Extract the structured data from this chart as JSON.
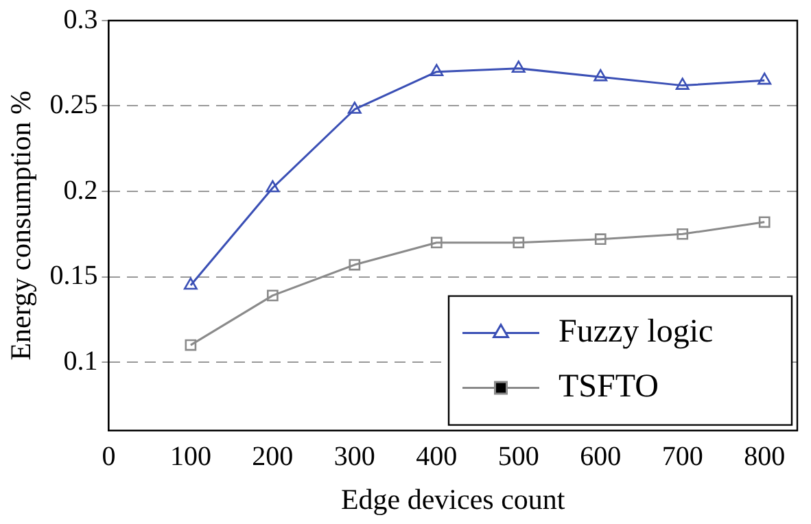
{
  "chart_data": {
    "type": "line",
    "xlabel": "Edge devices count",
    "ylabel": "Energy consumption %",
    "x": [
      100,
      200,
      300,
      400,
      500,
      600,
      700,
      800
    ],
    "series": [
      {
        "name": "Fuzzy logic",
        "color": "#3a4fb5",
        "marker": "triangle",
        "values": [
          0.145,
          0.202,
          0.248,
          0.27,
          0.272,
          0.267,
          0.262,
          0.265
        ]
      },
      {
        "name": "TSFTO",
        "color": "#8a8a8a",
        "marker": "square",
        "values": [
          0.11,
          0.139,
          0.157,
          0.17,
          0.17,
          0.172,
          0.175,
          0.182
        ]
      }
    ],
    "xlim": [
      0,
      840
    ],
    "xticks": [
      0,
      100,
      200,
      300,
      400,
      500,
      600,
      700,
      800
    ],
    "ylim": [
      0.06,
      0.3
    ],
    "yticks": [
      0.1,
      0.15,
      0.2,
      0.25,
      0.3
    ],
    "grid": "y",
    "legend": "bottom right",
    "line_style": "solid"
  }
}
